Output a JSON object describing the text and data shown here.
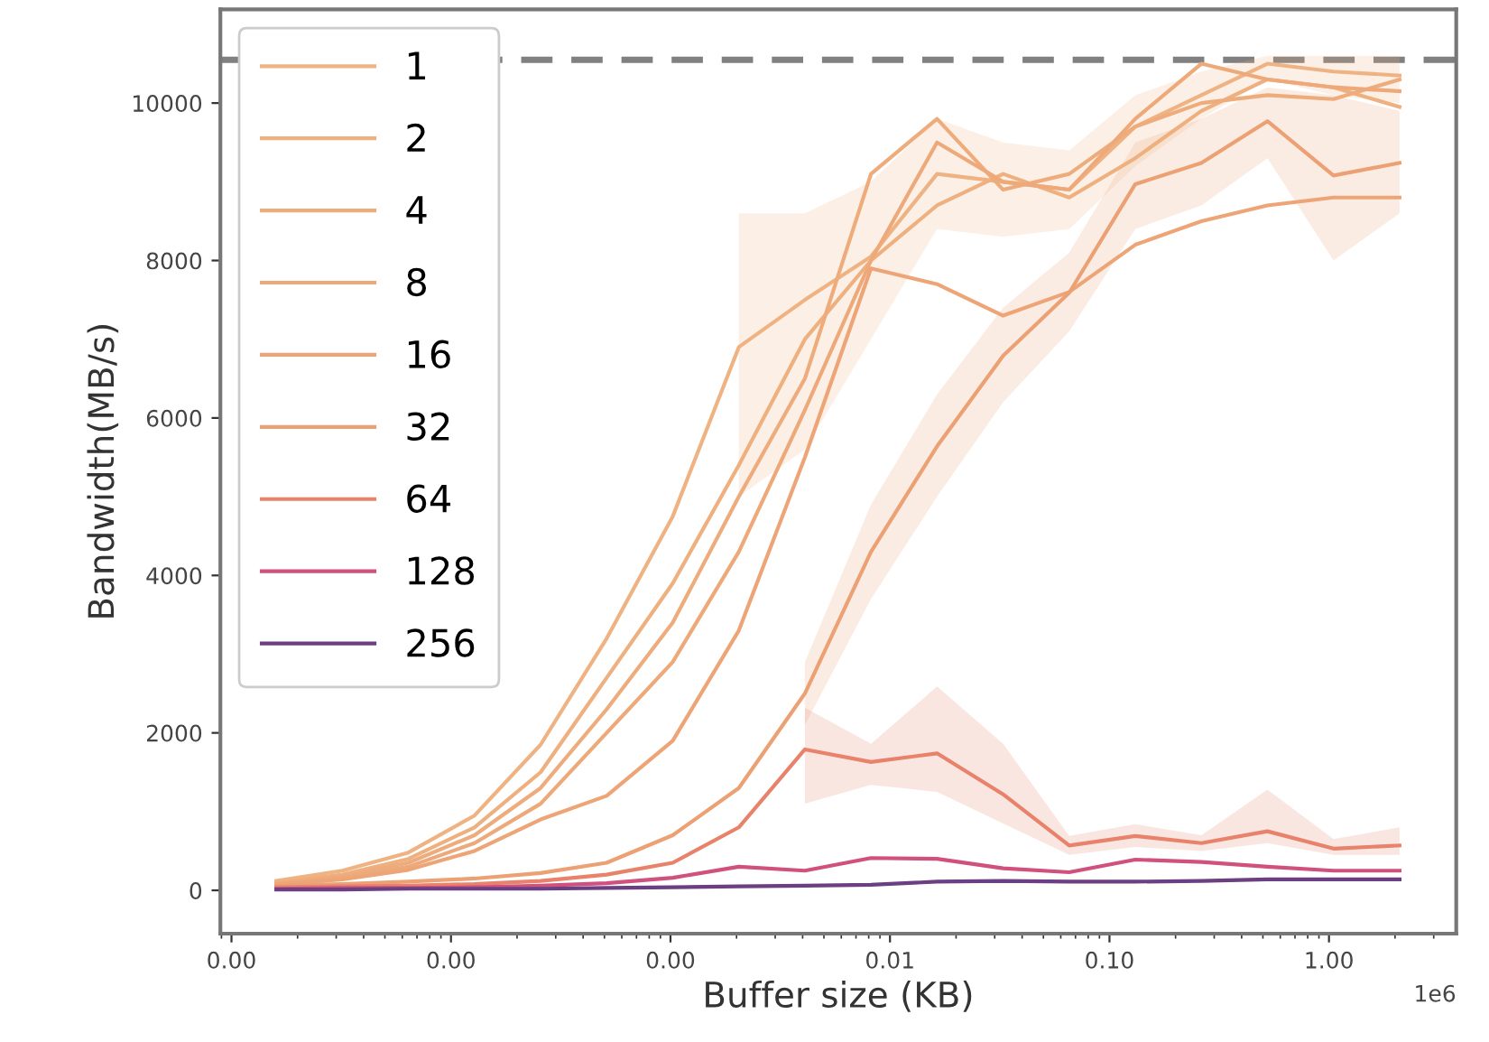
{
  "chart_data": {
    "type": "line",
    "xlabel": "Buffer size (KB)",
    "ylabel": "Bandwidth(MB/s)",
    "annotations": [
      "1e6"
    ],
    "x": [
      1.6e-05,
      3.2e-05,
      6.4e-05,
      0.000128,
      0.000256,
      0.000512,
      0.001024,
      0.002048,
      0.004096,
      0.008192,
      0.016384,
      0.032768,
      0.065536,
      0.131072,
      0.262144,
      0.524288,
      1.048576,
      2.097152
    ],
    "log": "x",
    "xlim": [
      8.9e-06,
      3.8
    ],
    "xticks": [
      {
        "value": 1e-05,
        "label": "0.00"
      },
      {
        "value": 0.0001,
        "label": "0.00"
      },
      {
        "value": 0.001,
        "label": "0.00"
      },
      {
        "value": 0.01,
        "label": "0.01"
      },
      {
        "value": 0.1,
        "label": "0.10"
      },
      {
        "value": 1,
        "label": "1.00"
      }
    ],
    "ylim": [
      -550,
      11190
    ],
    "yticks": [
      0,
      2000,
      4000,
      6000,
      8000,
      10000
    ],
    "grid": false,
    "legend": "top left",
    "marker": "none",
    "line_style": "solid",
    "ref_lines": [
      {
        "axis": "y",
        "value": 10550,
        "color": "#808080",
        "line_style": "dashed"
      }
    ],
    "series": [
      {
        "name": "1",
        "color": "#efb383",
        "values": [
          120,
          250,
          480,
          950,
          1850,
          3200,
          4750,
          6900,
          7500,
          8050,
          9100,
          9000,
          8900,
          9700,
          10100,
          10500,
          10400,
          10350
        ],
        "lower": [
          null,
          null,
          null,
          null,
          null,
          null,
          null,
          5000,
          5600,
          7000,
          8400,
          8300,
          8400,
          9200,
          9800,
          10300,
          10100,
          10000
        ],
        "upper": [
          null,
          null,
          null,
          null,
          null,
          null,
          null,
          8600,
          8600,
          9000,
          9800,
          9500,
          9400,
          10100,
          10400,
          10600,
          10600,
          10600
        ]
      },
      {
        "name": "2",
        "color": "#efb080",
        "values": [
          100,
          200,
          400,
          800,
          1500,
          2700,
          3900,
          5400,
          7000,
          8000,
          8700,
          9100,
          8800,
          9300,
          9900,
          10300,
          10200,
          9950
        ]
      },
      {
        "name": "4",
        "color": "#eeac7d",
        "values": [
          90,
          180,
          350,
          700,
          1300,
          2300,
          3400,
          5000,
          6500,
          9100,
          9800,
          8900,
          9100,
          9700,
          10000,
          10100,
          10050,
          10300
        ]
      },
      {
        "name": "8",
        "color": "#eea97a",
        "values": [
          80,
          160,
          300,
          600,
          1100,
          2000,
          2900,
          4300,
          6100,
          8000,
          9500,
          9000,
          8900,
          9800,
          10500,
          10300,
          10200,
          10150
        ]
      },
      {
        "name": "16",
        "color": "#eda577",
        "values": [
          70,
          140,
          260,
          500,
          900,
          1200,
          1900,
          3300,
          5500,
          7900,
          7700,
          7300,
          7600,
          8200,
          8500,
          8700,
          8800,
          8800
        ]
      },
      {
        "name": "32",
        "color": "#eca174",
        "values": [
          60,
          80,
          110,
          150,
          220,
          350,
          700,
          1300,
          2500,
          4300,
          5640,
          6790,
          7590,
          8970,
          9240,
          9770,
          9080,
          9240
        ],
        "lower": [
          null,
          null,
          null,
          null,
          null,
          null,
          null,
          null,
          2100,
          3700,
          5000,
          6200,
          7100,
          8400,
          8700,
          9300,
          8000,
          8600
        ],
        "upper": [
          null,
          null,
          null,
          null,
          null,
          null,
          null,
          null,
          2900,
          4900,
          6300,
          7400,
          8100,
          9500,
          9800,
          10200,
          10100,
          9900
        ]
      },
      {
        "name": "64",
        "color": "#e8826a",
        "values": [
          40,
          50,
          60,
          80,
          120,
          200,
          350,
          800,
          1790,
          1630,
          1740,
          1220,
          570,
          690,
          600,
          750,
          530,
          570
        ],
        "lower": [
          null,
          null,
          null,
          null,
          null,
          null,
          null,
          null,
          1100,
          1340,
          1250,
          850,
          450,
          550,
          500,
          600,
          450,
          450
        ],
        "upper": [
          null,
          null,
          null,
          null,
          null,
          null,
          null,
          null,
          2320,
          1860,
          2590,
          1860,
          690,
          840,
          700,
          1280,
          650,
          800
        ]
      },
      {
        "name": "128",
        "color": "#d0507e",
        "values": [
          20,
          30,
          30,
          40,
          60,
          90,
          160,
          300,
          250,
          410,
          400,
          280,
          230,
          390,
          360,
          300,
          250,
          250
        ]
      },
      {
        "name": "256",
        "color": "#6b3f82",
        "values": [
          10,
          10,
          20,
          20,
          20,
          30,
          40,
          50,
          60,
          70,
          110,
          120,
          110,
          110,
          120,
          140,
          140,
          140
        ]
      }
    ]
  }
}
